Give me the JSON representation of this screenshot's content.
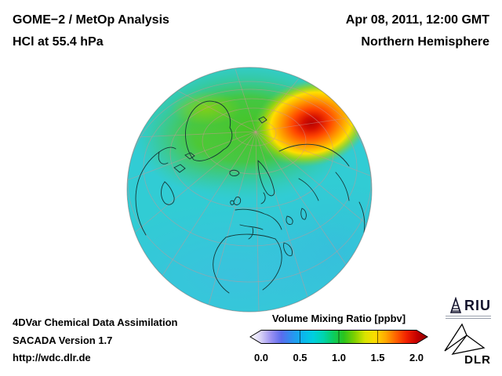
{
  "header": {
    "title_line1": "GOME−2 / MetOp Analysis",
    "title_line2": "HCl at 55.4 hPa",
    "datetime": "Apr 08, 2011, 12:00 GMT",
    "region": "Northern Hemisphere"
  },
  "footer": {
    "line1": "4DVar Chemical Data Assimilation",
    "line2": "SACADA Version 1.7",
    "line3": "http://wdc.dlr.de"
  },
  "colorbar": {
    "label": "Volume Mixing Ratio [ppbv]",
    "ticks": [
      "0.0",
      "0.5",
      "1.0",
      "1.5",
      "2.0"
    ],
    "min": 0,
    "max": 2,
    "gradient": [
      "#ffffff",
      "#d8d2f6",
      "#9a90f2",
      "#5a6cee",
      "#2b92f0",
      "#0cb4ee",
      "#00cfe0",
      "#00d4ae",
      "#0ccc5c",
      "#2cc41c",
      "#7ed000",
      "#d8e400",
      "#ffdc00",
      "#ffa800",
      "#ff6000",
      "#f22000",
      "#c40000",
      "#8c0000"
    ]
  },
  "logos": {
    "riu_text": "RIU",
    "dlr_text": "DLR"
  },
  "chart_data": {
    "type": "heatmap",
    "title": "GOME−2 / MetOp Analysis - HCl at 55.4 hPa",
    "datetime": "Apr 08, 2011, 12:00 GMT",
    "projection": "orthographic globe, Northern Hemisphere",
    "quantity": "HCl volume mixing ratio",
    "units": "ppbv",
    "scale_range": [
      0,
      2
    ],
    "scale_ticks": [
      0,
      0.5,
      1,
      1.5,
      2
    ],
    "features": [
      {
        "region": "mid-latitude background",
        "approx_value_ppbv": 0.8,
        "color": "cyan"
      },
      {
        "region": "high-latitude polar cap band",
        "approx_value_ppbv": 1.1,
        "color": "green"
      },
      {
        "region": "maximum over north-central Siberia",
        "approx_value_ppbv": 2.0,
        "color": "dark red"
      },
      {
        "region": "subtropics / low latitudes near limb",
        "approx_value_ppbv": 0.7,
        "color": "light blue"
      }
    ]
  }
}
